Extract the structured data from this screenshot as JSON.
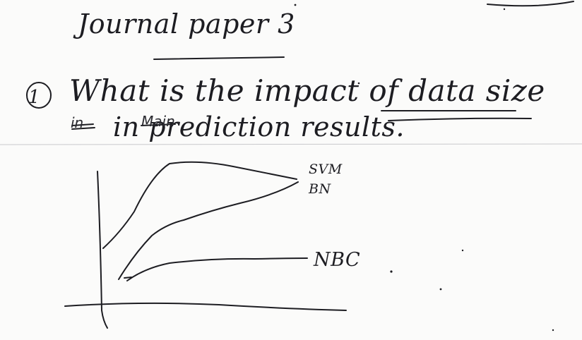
{
  "note": {
    "title": "Journal paper 3",
    "question_number": "1",
    "question_line1": "What is the impact of data size",
    "question_line2": "in prediction results.",
    "struck_words": [
      "in",
      "Main"
    ]
  },
  "sketch": {
    "curve_labels": [
      "SVM",
      "BN",
      "NBC"
    ]
  }
}
